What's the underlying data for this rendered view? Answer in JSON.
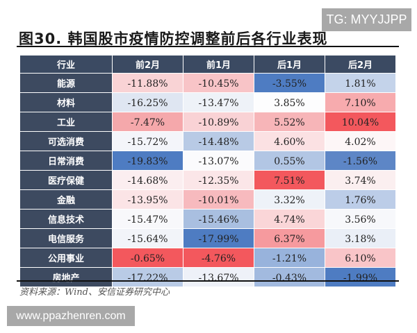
{
  "watermark_top": "TG: MYYJJPP",
  "watermark_bottom": "www.ppazhenren.com",
  "title": "图30. 韩国股市疫情防控调整前后各行业表现",
  "source": "资料来源：Wind、安信证券研究中心",
  "chart_data": {
    "type": "heatmap",
    "title": "图30. 韩国股市疫情防控调整前后各行业表现",
    "columns": [
      "行业",
      "前2月",
      "前1月",
      "后1月",
      "后2月"
    ],
    "rows": [
      {
        "label": "能源",
        "values": [
          "-11.88%",
          "-10.45%",
          "-3.55%",
          "1.81%"
        ],
        "colors": [
          "#f9d3d5",
          "#f8c4c7",
          "#4e7cc2",
          "#c4d3ea"
        ]
      },
      {
        "label": "材料",
        "values": [
          "-16.25%",
          "-13.47%",
          "3.85%",
          "7.10%"
        ],
        "colors": [
          "#dfe6f2",
          "#eef2f8",
          "#fdfdfe",
          "#f7abae"
        ]
      },
      {
        "label": "工业",
        "values": [
          "-7.47%",
          "-10.89%",
          "5.52%",
          "10.04%"
        ],
        "colors": [
          "#f5a8ab",
          "#f9d2d5",
          "#f7b5b8",
          "#f3585d"
        ]
      },
      {
        "label": "可选消费",
        "values": [
          "-15.72%",
          "-14.48%",
          "4.60%",
          "4.02%"
        ],
        "colors": [
          "#f4f5fa",
          "#b8cae5",
          "#fbe1e3",
          "#fdf6f7"
        ]
      },
      {
        "label": "日常消费",
        "values": [
          "-19.83%",
          "-13.07%",
          "0.55%",
          "-1.56%"
        ],
        "colors": [
          "#4e7cc2",
          "#fbfbfd",
          "#b2c6e4",
          "#5d86c6"
        ]
      },
      {
        "label": "医疗保健",
        "values": [
          "-14.68%",
          "-12.35%",
          "7.51%",
          "3.74%"
        ],
        "colors": [
          "#fbeef0",
          "#fbe6e8",
          "#f3585d",
          "#fbeff0"
        ]
      },
      {
        "label": "金融",
        "values": [
          "-13.95%",
          "-10.01%",
          "3.32%",
          "1.76%"
        ],
        "colors": [
          "#fbe4e6",
          "#f7babe",
          "#eef2f8",
          "#bccde8"
        ]
      },
      {
        "label": "信息技术",
        "values": [
          "-15.47%",
          "-15.46%",
          "4.74%",
          "3.56%"
        ],
        "colors": [
          "#f8f8fb",
          "#a9bfe0",
          "#fad6d8",
          "#f7f8fb"
        ]
      },
      {
        "label": "电信服务",
        "values": [
          "-15.64%",
          "-17.99%",
          "6.37%",
          "3.18%"
        ],
        "colors": [
          "#f2f4f9",
          "#4e7cc2",
          "#f69a9e",
          "#eaeff7"
        ]
      },
      {
        "label": "公用事业",
        "values": [
          "-0.65%",
          "-4.76%",
          "-1.21%",
          "6.10%"
        ],
        "colors": [
          "#f3585d",
          "#f3585d",
          "#98b3dc",
          "#f9c5c8"
        ]
      },
      {
        "label": "房地产",
        "values": [
          "-17.22%",
          "-13.67%",
          "-0.43%",
          "-1.99%"
        ],
        "colors": [
          "#b9cbe6",
          "#eef1f8",
          "#a2badf",
          "#4e7cc2"
        ]
      }
    ]
  }
}
